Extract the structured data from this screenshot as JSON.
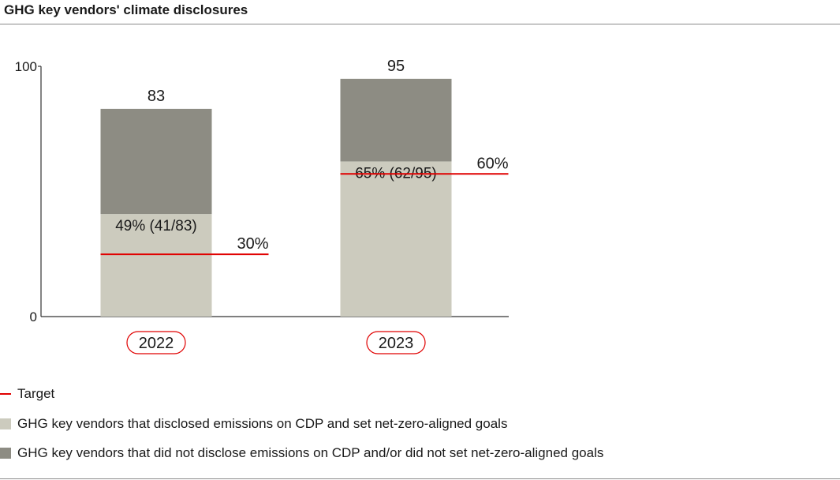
{
  "title": "GHG key vendors' climate disclosures",
  "colors": {
    "disclosed": "#cccbbe",
    "not_disclosed": "#8d8c83",
    "target": "#e00000",
    "axis": "#333333",
    "year_pill_border": "#e00000"
  },
  "chart_data": {
    "type": "bar",
    "stacked": true,
    "categories": [
      "2022",
      "2023"
    ],
    "ylim": [
      0,
      100
    ],
    "y_ticks": [
      "0",
      "100"
    ],
    "series": [
      {
        "name": "GHG key vendors that disclosed emissions on CDP and set net-zero-aligned goals",
        "values": [
          41,
          62
        ]
      },
      {
        "name": "GHG key vendors that did not disclose emissions on CDP and/or did not set net-zero-aligned goals",
        "values": [
          42,
          33
        ]
      }
    ],
    "totals": [
      83,
      95
    ],
    "total_labels": [
      "83",
      "95"
    ],
    "share_labels": [
      "49% (41/83)",
      "65% (62/95)"
    ],
    "targets": [
      {
        "name": "Target",
        "value_pct": 30,
        "label": "30%"
      },
      {
        "name": "Target",
        "value_pct": 60,
        "label": "60%"
      }
    ],
    "grid": false,
    "legend_position": "bottom-left"
  },
  "legend": {
    "target": "Target",
    "disclosed": "GHG key vendors that disclosed emissions on CDP and set net-zero-aligned goals",
    "not_disclosed": "GHG key vendors that did not disclose emissions on CDP and/or did not set net-zero-aligned goals"
  }
}
